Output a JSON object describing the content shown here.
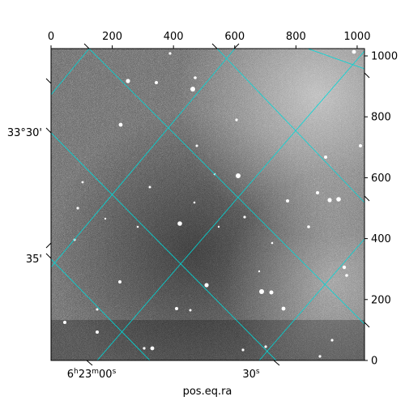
{
  "plot": {
    "xlabel": "pos.eq.ra",
    "pixel_x_ticks": [
      "0",
      "200",
      "400",
      "600",
      "800",
      "1000"
    ],
    "pixel_y_ticks": [
      "0",
      "200",
      "400",
      "600",
      "800",
      "1000"
    ],
    "dec_labels": [
      "33°30'",
      "35'"
    ],
    "ra_labels": [
      {
        "pre": "6",
        "h": "h",
        "m_val": "23",
        "m": "m",
        "s_val": "00",
        "s": "s"
      },
      {
        "pre": "",
        "h": "",
        "m_val": "",
        "m": "",
        "s_val": "30",
        "s": "s"
      }
    ]
  },
  "colors": {
    "grid": "#00d8d8",
    "frame": "#000000",
    "background": "#ffffff"
  }
}
